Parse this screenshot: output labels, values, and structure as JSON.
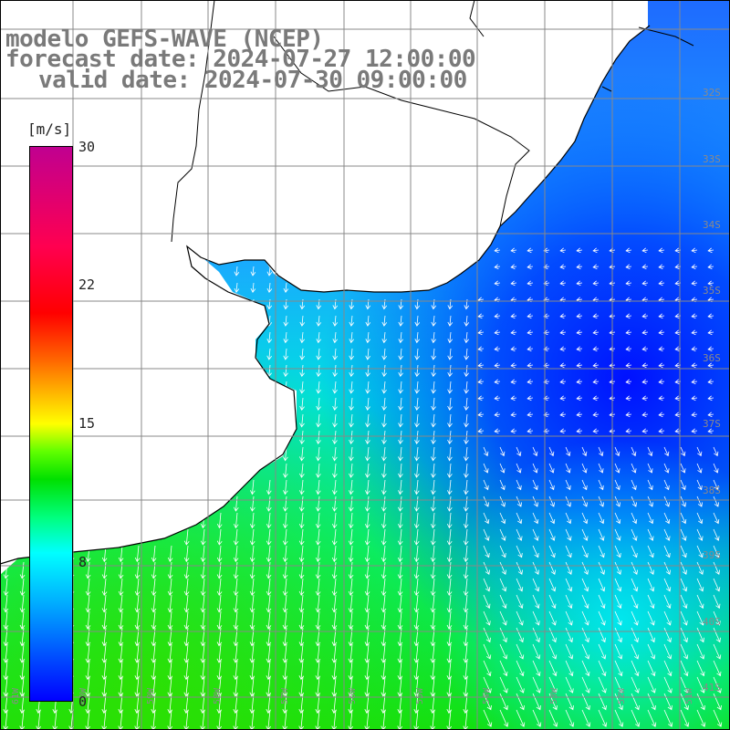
{
  "title": {
    "line1": "modelo GEFS-WAVE (NCEP)",
    "line2": "forecast date: 2024-07-27 12:00:00",
    "line3": "valid date: 2024-07-30 09:00:00"
  },
  "colorbar": {
    "unit": "[m/s]",
    "ticks": [
      "30",
      "22",
      "15",
      "8",
      "0"
    ],
    "colors": [
      "#0000ff",
      "#00ffff",
      "#00e000",
      "#ffff00",
      "#ff0000",
      "#c00090"
    ]
  },
  "grid": {
    "lat_labels": [
      "32S",
      "33S",
      "34S",
      "35S",
      "36S",
      "37S",
      "38S",
      "39S",
      "40S",
      "41S"
    ],
    "lon_labels": [
      "61W",
      "60W",
      "59W",
      "58W",
      "57W",
      "56W",
      "55W",
      "54W",
      "53W",
      "52W",
      "51W"
    ]
  },
  "colors": {
    "land": "#ffffff",
    "coast": "#000000",
    "grid": "#888888",
    "arrows": "#ffffff"
  }
}
